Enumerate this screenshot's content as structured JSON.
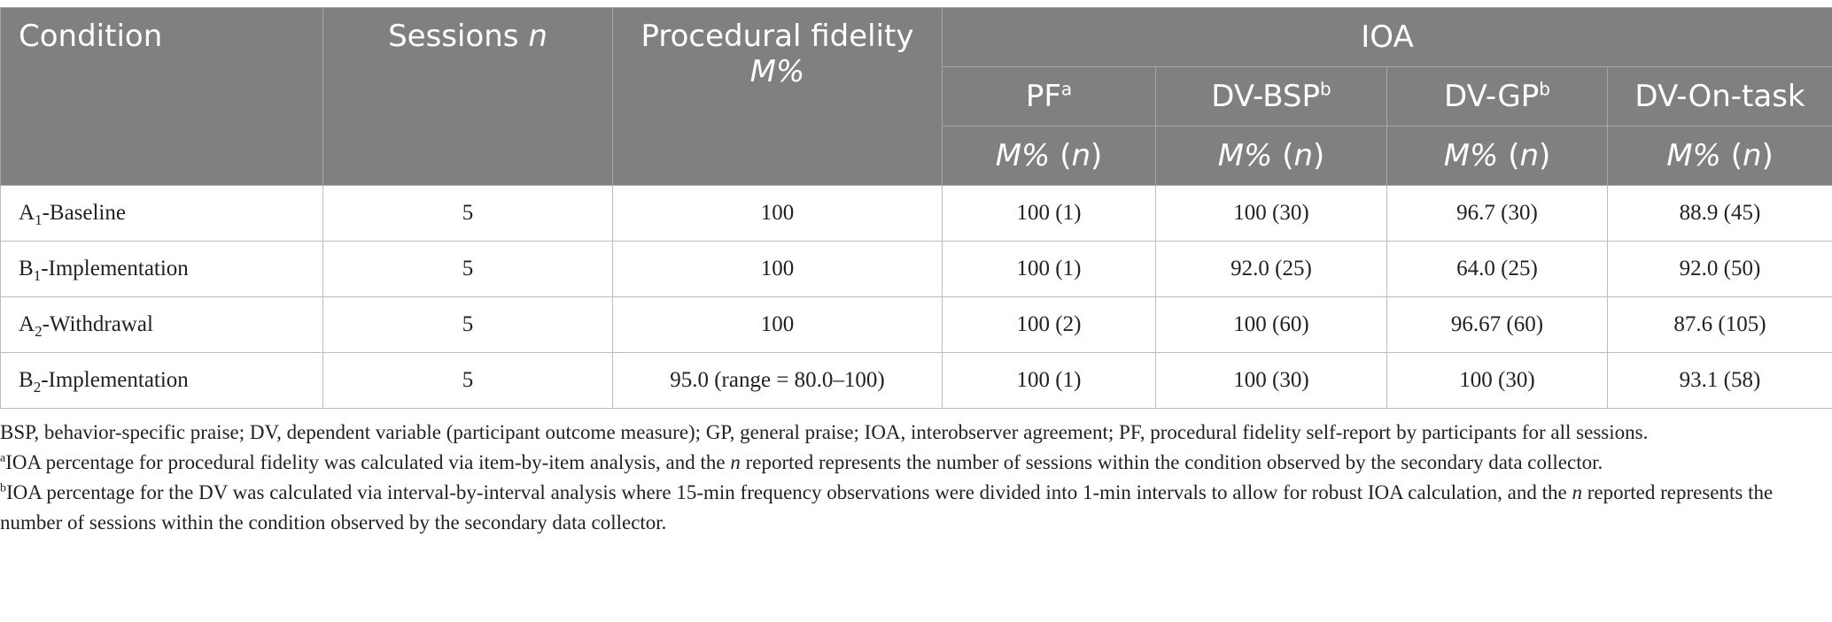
{
  "headers": {
    "condition": "Condition",
    "sessions": "Sessions",
    "sessions_n": "n",
    "fidelity_line1": "Procedural fidelity",
    "fidelity_line2": "M%",
    "ioa": "IOA",
    "sub": [
      {
        "label": "PF",
        "sup": "a"
      },
      {
        "label": "DV-BSP",
        "sup": "b"
      },
      {
        "label": "DV-GP",
        "sup": "b"
      },
      {
        "label": "DV-On-task",
        "sup": ""
      }
    ],
    "metric_m": "M%",
    "metric_n_open": "(",
    "metric_n": "n",
    "metric_n_close": ")"
  },
  "rows": [
    {
      "cond_letter": "A",
      "cond_sub": "1",
      "cond_rest": "-Baseline",
      "sessions": "5",
      "fidelity": "100",
      "pf": "100 (1)",
      "bsp": "100 (30)",
      "gp": "96.7 (30)",
      "ontask": "88.9 (45)"
    },
    {
      "cond_letter": "B",
      "cond_sub": "1",
      "cond_rest": "-Implementation",
      "sessions": "5",
      "fidelity": "100",
      "pf": "100 (1)",
      "bsp": "92.0 (25)",
      "gp": "64.0 (25)",
      "ontask": "92.0 (50)"
    },
    {
      "cond_letter": "A",
      "cond_sub": "2",
      "cond_rest": "-Withdrawal",
      "sessions": "5",
      "fidelity": "100",
      "pf": "100 (2)",
      "bsp": "100 (60)",
      "gp": "96.67 (60)",
      "ontask": "87.6 (105)"
    },
    {
      "cond_letter": "B",
      "cond_sub": "2",
      "cond_rest": "-Implementation",
      "sessions": "5",
      "fidelity": "95.0 (range = 80.0–100)",
      "pf": "100 (1)",
      "bsp": "100 (30)",
      "gp": "100 (30)",
      "ontask": "93.1 (58)"
    }
  ],
  "notes": {
    "abbrev": "BSP, behavior-specific praise; DV, dependent variable (participant outcome measure); GP, general praise; IOA, interobserver agreement; PF, procedural fidelity self-report by participants for all sessions.",
    "note_a_sup": "a",
    "note_a_pre": "IOA percentage for procedural fidelity was calculated via item-by-item analysis, and the ",
    "note_a_n": "n",
    "note_a_post": " reported represents the number of sessions within the condition observed by the secondary data collector.",
    "note_b_sup": "b",
    "note_b_pre": "IOA percentage for the DV was calculated via interval-by-interval analysis where 15-min frequency observations were divided into 1-min intervals to allow for robust IOA calculation, and the ",
    "note_b_n": "n",
    "note_b_post": " reported represents the number of sessions within the condition observed by the secondary data collector."
  }
}
